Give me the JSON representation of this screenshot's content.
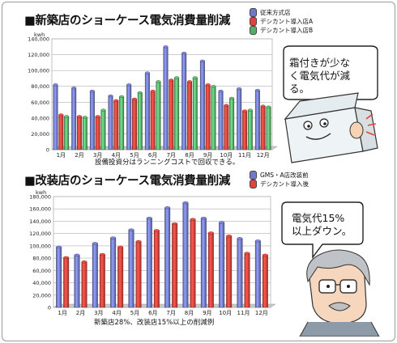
{
  "chart_data": [
    {
      "type": "bar",
      "title": "■新築店のショーケース電気消費量削減",
      "ylabel": "kwh",
      "ylim": [
        0,
        140000
      ],
      "yticks": [
        "0",
        "20,000",
        "40,000",
        "60,000",
        "80,000",
        "100,000",
        "120,000",
        "140,000"
      ],
      "categories": [
        "1月",
        "2月",
        "3月",
        "4月",
        "5月",
        "6月",
        "7月",
        "8月",
        "9月",
        "10月",
        "11月",
        "12月"
      ],
      "series": [
        {
          "name": "従来方式店",
          "color": "#6f78c9",
          "values": [
            82000,
            78000,
            74000,
            68000,
            82000,
            97000,
            130000,
            122000,
            112000,
            74000,
            77000,
            75000
          ]
        },
        {
          "name": "デシカント導入店A",
          "color": "#e2433a",
          "values": [
            44000,
            42000,
            42000,
            62000,
            64000,
            74000,
            88000,
            86000,
            82000,
            56000,
            49000,
            55000
          ]
        },
        {
          "name": "デシカント導入店B",
          "color": "#56ae68",
          "values": [
            42000,
            41000,
            50000,
            67000,
            72000,
            86000,
            91000,
            91000,
            80000,
            65000,
            50000,
            54000
          ]
        }
      ],
      "caption": "設備投資分はランニングコストで回収できる。"
    },
    {
      "type": "bar",
      "title": "■改装店のショーケース電気消費量削減",
      "ylabel": "kwh",
      "ylim": [
        0,
        180000
      ],
      "yticks": [
        "0",
        "20,000",
        "40,000",
        "60,000",
        "80,000",
        "100,000",
        "120,000",
        "140,000",
        "160,000",
        "180,000"
      ],
      "categories": [
        "1月",
        "2月",
        "3月",
        "4月",
        "5月",
        "6月",
        "7月",
        "8月",
        "9月",
        "10月",
        "11月",
        "12月"
      ],
      "series": [
        {
          "name": "GMS・A店改装前",
          "color": "#6f78c9",
          "values": [
            98000,
            85000,
            104000,
            113000,
            126000,
            145000,
            162000,
            170000,
            145000,
            138000,
            112000,
            108000
          ]
        },
        {
          "name": "デシカント導入後",
          "color": "#e2433a",
          "values": [
            81000,
            74000,
            86000,
            98000,
            107000,
            125000,
            136000,
            143000,
            121000,
            116000,
            88000,
            85000
          ]
        }
      ],
      "caption": "新築店28%、改装店15%以上の削減例"
    }
  ],
  "bubbles": {
    "top": [
      "霜付きが少な",
      "く電気代が減",
      "る。"
    ],
    "bottom": [
      "電気代15%",
      "以上ダウン。"
    ]
  }
}
